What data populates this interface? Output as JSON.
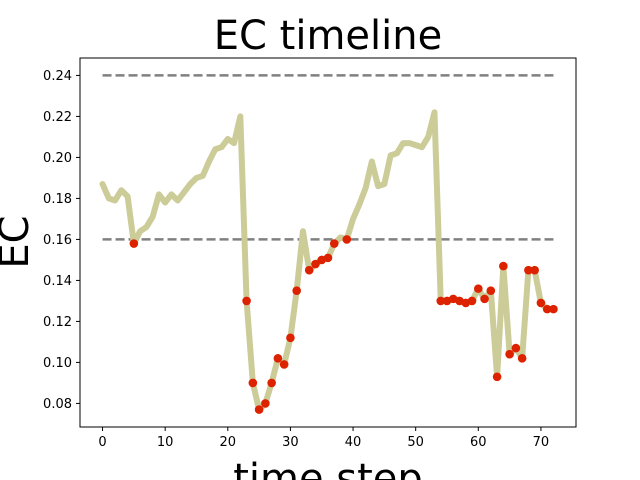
{
  "chart_data": {
    "type": "line",
    "title": "EC timeline",
    "xlabel": "time step",
    "ylabel": "EC",
    "xlim": [
      -3.6,
      75.6
    ],
    "ylim": [
      0.0685,
      0.2485
    ],
    "x_ticks": [
      0,
      10,
      20,
      30,
      40,
      50,
      60,
      70
    ],
    "y_ticks": [
      0.08,
      0.1,
      0.12,
      0.14,
      0.16,
      0.18,
      0.2,
      0.22,
      0.24
    ],
    "grid": false,
    "thresholds": [
      0.24,
      0.16
    ],
    "threshold_color": "#808080",
    "line_color": "#cccc99",
    "marker_color": "#dd2200",
    "x": [
      0,
      1,
      2,
      3,
      4,
      5,
      6,
      7,
      8,
      9,
      10,
      11,
      12,
      13,
      14,
      15,
      16,
      17,
      18,
      19,
      20,
      21,
      22,
      23,
      24,
      25,
      26,
      27,
      28,
      29,
      30,
      31,
      32,
      33,
      34,
      35,
      36,
      37,
      38,
      39,
      40,
      41,
      42,
      43,
      44,
      45,
      46,
      47,
      48,
      49,
      50,
      51,
      52,
      53,
      54,
      55,
      56,
      57,
      58,
      59,
      60,
      61,
      62,
      63,
      64,
      65,
      66,
      67,
      68,
      69,
      70,
      71,
      72
    ],
    "y": [
      0.187,
      0.18,
      0.179,
      0.184,
      0.181,
      0.158,
      0.164,
      0.166,
      0.171,
      0.182,
      0.178,
      0.182,
      0.179,
      0.183,
      0.187,
      0.19,
      0.191,
      0.198,
      0.204,
      0.205,
      0.209,
      0.207,
      0.22,
      0.13,
      0.09,
      0.077,
      0.08,
      0.09,
      0.102,
      0.099,
      0.112,
      0.135,
      0.164,
      0.145,
      0.148,
      0.15,
      0.151,
      0.158,
      0.161,
      0.16,
      0.17,
      0.177,
      0.185,
      0.198,
      0.186,
      0.187,
      0.201,
      0.202,
      0.207,
      0.207,
      0.206,
      0.205,
      0.21,
      0.222,
      0.13,
      0.13,
      0.131,
      0.13,
      0.129,
      0.13,
      0.136,
      0.131,
      0.135,
      0.093,
      0.147,
      0.104,
      0.107,
      0.102,
      0.145,
      0.145,
      0.129,
      0.126,
      0.126
    ],
    "marked_x": [
      5,
      23,
      24,
      25,
      26,
      27,
      28,
      29,
      30,
      31,
      33,
      34,
      35,
      36,
      37,
      39,
      54,
      55,
      56,
      57,
      58,
      59,
      60,
      61,
      62,
      63,
      64,
      65,
      66,
      67,
      68,
      69,
      70,
      71,
      72
    ]
  }
}
